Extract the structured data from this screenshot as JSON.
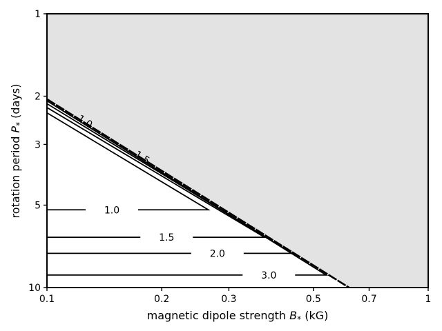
{
  "chart_data": {
    "type": "line",
    "title": "",
    "xlabel": "magnetic dipole strength",
    "xlabel_symbol": "B",
    "xlabel_sub": "*",
    "xlabel_unit": "(kG)",
    "ylabel": "rotation period",
    "ylabel_symbol": "P",
    "ylabel_sub": "*",
    "ylabel_unit": "(days)",
    "x_scale": "log",
    "y_scale": "log",
    "y_inverted": true,
    "xlim": [
      0.1,
      1
    ],
    "ylim": [
      1,
      10
    ],
    "x_ticks": [
      0.1,
      0.2,
      0.3,
      0.5,
      0.7,
      1
    ],
    "x_tick_labels": [
      "0.1",
      "0.2",
      "0.3",
      "0.5",
      "0.7",
      "1"
    ],
    "y_ticks": [
      1,
      2,
      3,
      5,
      10
    ],
    "y_tick_labels": [
      "1",
      "2",
      "3",
      "5",
      "10"
    ],
    "grid": false,
    "shaded_region_color": "#e3e3e3",
    "line_color": "#000000",
    "boundary": {
      "x": [
        0.1,
        0.62
      ],
      "y": [
        2.05,
        10
      ]
    },
    "series": [
      {
        "level": "1.0",
        "x": [
          0.1,
          0.265,
          0.26,
          0.1
        ],
        "y": [
          2.3,
          5.2,
          5.2,
          5.2
        ],
        "label_x": 0.148,
        "label_y": 5.2
      },
      {
        "level": "1.5",
        "x": [
          0.1,
          0.372,
          0.1
        ],
        "y": [
          2.2,
          6.55,
          6.55
        ],
        "label_x": 0.206,
        "label_y": 6.55
      },
      {
        "level": "2.0",
        "x": [
          0.1,
          0.44,
          0.1
        ],
        "y": [
          2.13,
          7.5,
          7.5
        ],
        "label_x": 0.28,
        "label_y": 7.5
      },
      {
        "level": "3.0",
        "x": [
          0.1,
          0.54,
          0.1
        ],
        "y": [
          2.08,
          9.0,
          9.0
        ],
        "label_x": 0.382,
        "label_y": 9.0
      }
    ],
    "inline_labels": [
      {
        "text": "1.0",
        "x": 0.126,
        "y": 2.47,
        "angle": 33
      },
      {
        "text": "1.5",
        "x": 0.178,
        "y": 3.34,
        "angle": 33
      }
    ]
  }
}
